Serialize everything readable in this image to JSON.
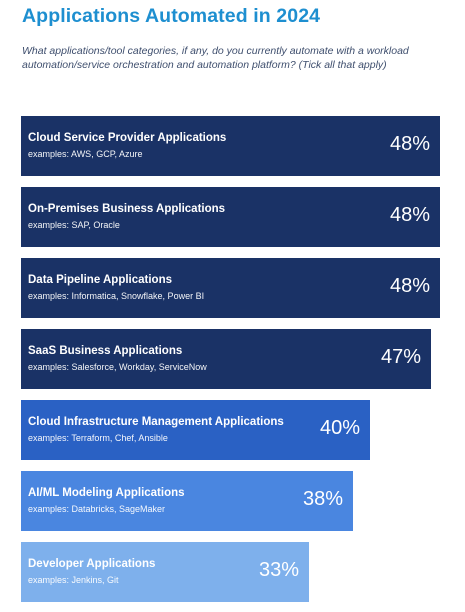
{
  "header": {
    "title": "Applications Automated in 2024",
    "subtitle": "What applications/tool categories, if any, do you currently automate with a workload automation/service orchestration and automation platform? (Tick all that apply)"
  },
  "colors": {
    "title": "#1e8fd0",
    "bar_dark": "#1a3266",
    "bar_mid": "#2a61c4",
    "bar_light": "#4a86e0",
    "bar_lightest": "#7eb0ec"
  },
  "chart_data": {
    "type": "bar",
    "orientation": "horizontal",
    "title": "Applications Automated in 2024",
    "categories": [
      "Cloud Service Provider Applications",
      "On-Premises Business Applications",
      "Data Pipeline Applications",
      "SaaS Business Applications",
      "Cloud Infrastructure Management Applications",
      "AI/ML Modeling Applications",
      "Developer Applications"
    ],
    "examples": [
      "examples: AWS, GCP, Azure",
      "examples: SAP, Oracle",
      "examples: Informatica, Snowflake, Power BI",
      "examples: Salesforce, Workday, ServiceNow",
      "examples: Terraform, Chef, Ansible",
      "examples: Databricks, SageMaker",
      "examples: Jenkins, Git"
    ],
    "values": [
      48,
      48,
      48,
      47,
      40,
      38,
      33
    ],
    "value_labels": [
      "48%",
      "48%",
      "48%",
      "47%",
      "40%",
      "38%",
      "33%"
    ],
    "unit": "%",
    "bar_colors": [
      "#1a3266",
      "#1a3266",
      "#1a3266",
      "#1a3266",
      "#2a61c4",
      "#4a86e0",
      "#7eb0ec"
    ],
    "xlim": [
      0,
      48
    ],
    "grid": false
  }
}
